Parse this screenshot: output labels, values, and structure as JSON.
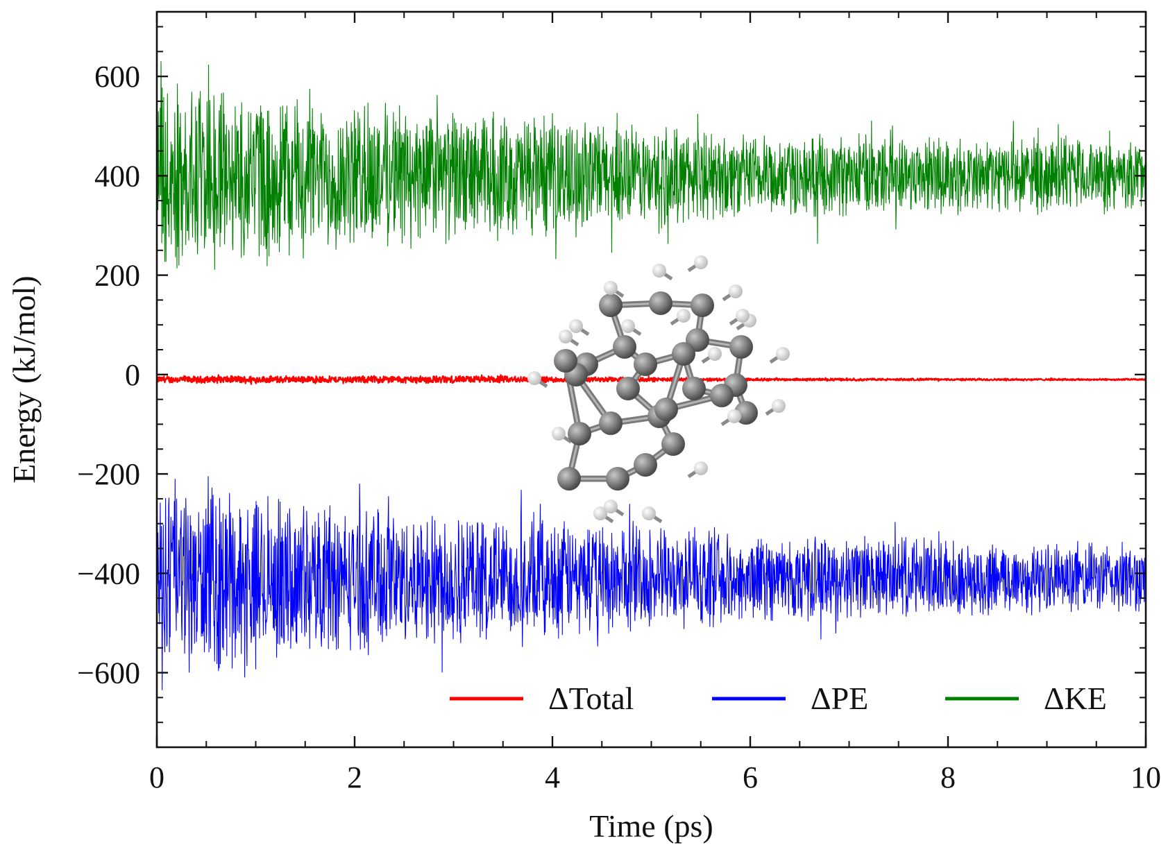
{
  "chart_data": {
    "type": "line",
    "title": "",
    "xlabel": "Time (ps)",
    "ylabel": "Energy (kJ/mol)",
    "xlim": [
      0,
      10
    ],
    "ylim": [
      -750,
      730
    ],
    "xticks": [
      0,
      2,
      4,
      6,
      8,
      10
    ],
    "xtick_labels": [
      "0",
      "2",
      "4",
      "6",
      "8",
      "10"
    ],
    "yticks": [
      600,
      400,
      200,
      0,
      -200,
      -400,
      -600
    ],
    "ytick_labels": [
      "600",
      "400",
      "200",
      "0",
      "−200",
      "−400",
      "−600"
    ],
    "grid": false,
    "legend_position": "bottom-right",
    "inset": "ball-and-stick molecule (gray carbon, white hydrogen) centered over the plot",
    "series": [
      {
        "name": "ΔTotal",
        "color": "#ff0000",
        "mean": -10,
        "amplitude_envelope": {
          "t": [
            0,
            3.5,
            6,
            10
          ],
          "amp": [
            8,
            8,
            3,
            2
          ]
        }
      },
      {
        "name": "ΔPE",
        "color": "#0000ff",
        "mean": -410,
        "amplitude_envelope": {
          "t": [
            0,
            1.5,
            3.5,
            6,
            10
          ],
          "amp": [
            210,
            170,
            140,
            95,
            75
          ]
        },
        "extremes": {
          "min": -645,
          "max": -205
        }
      },
      {
        "name": "ΔKE",
        "color": "#008000",
        "mean": 400,
        "amplitude_envelope": {
          "t": [
            0,
            1.5,
            3.5,
            6,
            10
          ],
          "amp": [
            210,
            170,
            140,
            95,
            75
          ]
        },
        "extremes": {
          "min": 195,
          "max": 630
        }
      }
    ]
  }
}
